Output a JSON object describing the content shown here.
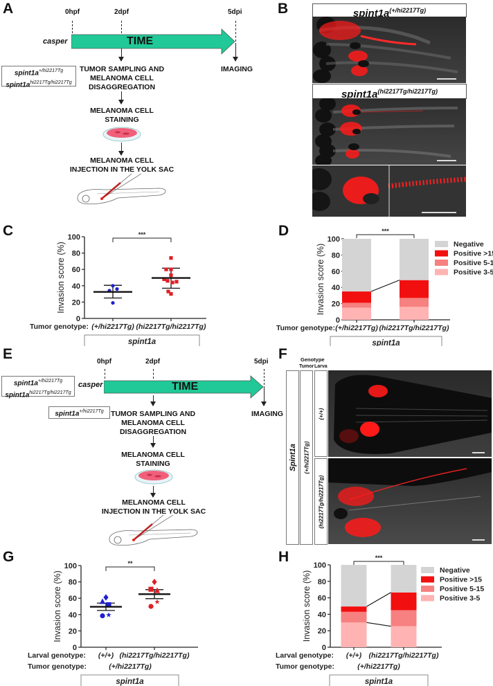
{
  "panels": {
    "A": {
      "letter": "A",
      "timeline": {
        "t0": "0hpf",
        "t1": "2dpf",
        "t2": "5dpi",
        "strain": "casper",
        "arrow_label": "TIME",
        "arrow_color": "#20c997"
      },
      "genotype_box": {
        "line1_base": "spint1a",
        "line1_sup": "+/hi2217Tg",
        "line2_base": "spint1a",
        "line2_sup": "hi2217Tg/hi2217Tg"
      },
      "steps": [
        "TUMOR SAMPLING AND\nMELANOMA CELL\nDISAGGREGATION",
        "MELANOMA CELL\nSTAINING",
        "MELANOMA CELL\nINJECTION IN THE YOLK SAC"
      ],
      "imaging": "IMAGING"
    },
    "B": {
      "letter": "B",
      "header1_base": "spint1a",
      "header1_sup": "(+/hi2217Tg)",
      "header2_base": "spint1a",
      "header2_sup": "(hi2217Tg/hi2217Tg)"
    },
    "E": {
      "letter": "E",
      "timeline": {
        "t0": "0hpf",
        "t1": "2dpf",
        "t2": "5dpi",
        "strain": "casper",
        "arrow_label": "TIME"
      },
      "genotype_box": {
        "line1_base": "spint1a",
        "line1_sup": "+/hi2217Tg",
        "line2_base": "spint1a",
        "line2_sup": "hi2217Tg/hi2217Tg"
      },
      "tumor_box": {
        "base": "spint1a",
        "sup": "+/hi2217Tg"
      },
      "steps": [
        "TUMOR SAMPLING AND\nMELANOMA CELL\nDISAGGREGATION",
        "MELANOMA CELL\nSTAINING",
        "MELANOMA CELL\nINJECTION IN THE YOLK SAC"
      ],
      "imaging": "IMAGING"
    },
    "F": {
      "letter": "F",
      "genotype_label": "Genotype",
      "tumor_label": "Tumor",
      "larva_label": "Larva",
      "gene": "Spint1a",
      "tumor_genotype": "(+/hi2217Tg)",
      "larva_rows": [
        "(+/+)",
        "(hi2217Tg/hi2217Tg)"
      ]
    }
  },
  "chart_data": [
    {
      "id": "C",
      "letter": "C",
      "type": "scatter",
      "ylabel": "Invasion score (%)",
      "ylim": [
        0,
        100
      ],
      "yticks": [
        0,
        20,
        40,
        60,
        80,
        100
      ],
      "row_labels": [
        {
          "label": "Tumor genotype:",
          "values": [
            "(+/hi2217Tg)",
            "(hi2217Tg/hi2217Tg)"
          ]
        }
      ],
      "gene_box": "spint1a",
      "significance": "***",
      "groups": [
        {
          "name": "(+/hi2217Tg)",
          "color": "#1f1fd0",
          "marker": "circle",
          "points": [
            19,
            34,
            36,
            40
          ],
          "mean": 32.5,
          "err_low": 25,
          "err_high": 40.5
        },
        {
          "name": "(hi2217Tg/hi2217Tg)",
          "color": "#e01f26",
          "marker": "square",
          "points": [
            74,
            60,
            60,
            53,
            48,
            46,
            45,
            44,
            33,
            30
          ],
          "mean": 49.5,
          "err_low": 37,
          "err_high": 61.5
        }
      ]
    },
    {
      "id": "D",
      "letter": "D",
      "type": "bar",
      "stacked": true,
      "ylabel": "Invasion score (%)",
      "ylim": [
        0,
        100
      ],
      "yticks": [
        0,
        20,
        40,
        60,
        80,
        100
      ],
      "categories": [
        "(+/hi2217Tg)",
        "(hi2217Tg/hi2217Tg)"
      ],
      "row_labels": [
        {
          "label": "Tumor genotype:",
          "values": [
            "(+/hi2217Tg)",
            "(hi2217Tg/hi2217Tg)"
          ]
        }
      ],
      "gene_box": "spint1a",
      "significance": "***",
      "legend_position": "right",
      "series": [
        {
          "name": "Positive 3-5",
          "color": "#ffb3b3",
          "values": [
            15,
            16
          ]
        },
        {
          "name": "Positive 5-15",
          "color": "#f78080",
          "values": [
            6,
            11
          ]
        },
        {
          "name": "Positive >15",
          "color": "#f20f0f",
          "values": [
            14,
            22
          ]
        },
        {
          "name": "Negative",
          "color": "#d4d4d4",
          "values": [
            65,
            51
          ]
        }
      ],
      "legend_order": [
        "Negative",
        "Positive >15",
        "Positive 5-15",
        "Positive 3-5"
      ],
      "connector_lines": [
        [
          35,
          49
        ]
      ]
    },
    {
      "id": "G",
      "letter": "G",
      "type": "scatter",
      "ylabel": "Invasion score (%)",
      "ylim": [
        0,
        100
      ],
      "yticks": [
        0,
        20,
        40,
        60,
        80,
        100
      ],
      "row_labels": [
        {
          "label": "Larval genotype:",
          "values": [
            "(+/+)",
            "(hi2217Tg/hi2217Tg)"
          ]
        },
        {
          "label": "Tumor genotype:",
          "values": [
            "(+/hi2217Tg)"
          ]
        }
      ],
      "gene_box": "spint1a",
      "significance": "**",
      "groups": [
        {
          "name": "(+/+)",
          "color": "#1f1fd0",
          "points": [
            {
              "y": 61,
              "marker": "diamond"
            },
            {
              "y": 56,
              "marker": "triangle"
            },
            {
              "y": 52,
              "marker": "square"
            },
            {
              "y": 38.5,
              "marker": "circle"
            },
            {
              "y": 39.5,
              "marker": "star"
            }
          ],
          "mean": 49.5,
          "err_low": 45,
          "err_high": 54
        },
        {
          "name": "(hi2217Tg/hi2217Tg)",
          "color": "#e01f26",
          "points": [
            {
              "y": 80,
              "marker": "diamond"
            },
            {
              "y": 71,
              "marker": "square"
            },
            {
              "y": 69.5,
              "marker": "triangle"
            },
            {
              "y": 55.5,
              "marker": "star"
            },
            {
              "y": 50,
              "marker": "circle"
            }
          ],
          "mean": 65,
          "err_low": 59.5,
          "err_high": 70.5
        }
      ]
    },
    {
      "id": "H",
      "letter": "H",
      "type": "bar",
      "stacked": true,
      "ylabel": "Invasion score (%)",
      "ylim": [
        0,
        100
      ],
      "yticks": [
        0,
        20,
        40,
        60,
        80,
        100
      ],
      "categories": [
        "(+/+)",
        "(hi2217Tg/hi2217Tg)"
      ],
      "row_labels": [
        {
          "label": "Larval genotype:",
          "values": [
            "(+/+)",
            "(hi2217Tg/hi2217Tg)"
          ]
        },
        {
          "label": "Tumor genotype:",
          "values": [
            "(+/hi2217Tg)"
          ]
        }
      ],
      "gene_box": "spint1a",
      "significance": "***",
      "legend_position": "right",
      "series": [
        {
          "name": "Positive 3-5",
          "color": "#ffb3b3",
          "values": [
            30,
            25.5
          ]
        },
        {
          "name": "Positive 5-15",
          "color": "#f78080",
          "values": [
            13,
            19.5
          ]
        },
        {
          "name": "Positive >15",
          "color": "#f20f0f",
          "values": [
            6.5,
            21.5
          ]
        },
        {
          "name": "Negative",
          "color": "#d4d4d4",
          "values": [
            50.5,
            33.5
          ]
        }
      ],
      "legend_order": [
        "Negative",
        "Positive >15",
        "Positive 5-15",
        "Positive 3-5"
      ],
      "connector_lines": [
        [
          49.5,
          66.5
        ],
        [
          30,
          25.5
        ]
      ]
    }
  ]
}
